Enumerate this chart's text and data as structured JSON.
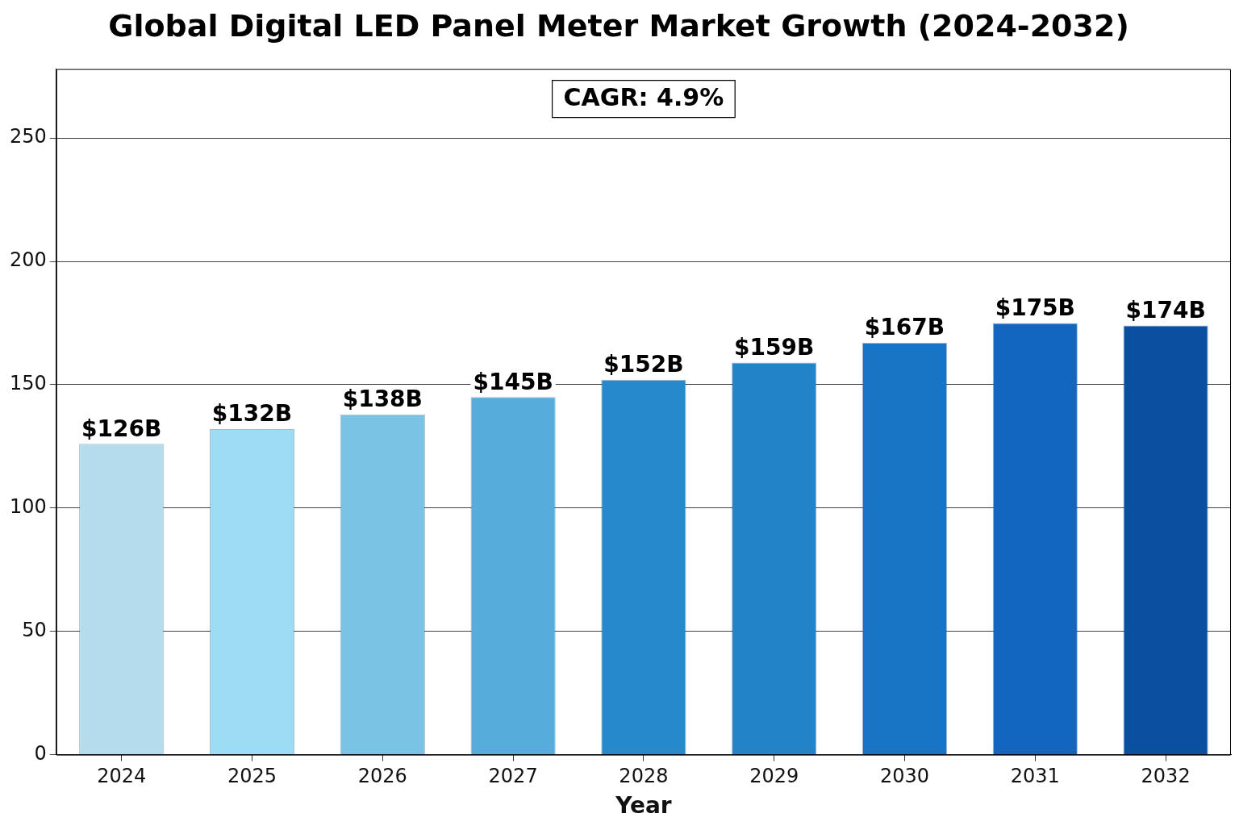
{
  "chart_data": {
    "type": "bar",
    "title": "Global Digital LED Panel Meter Market Growth (2024-2032)",
    "xlabel": "Year",
    "categories": [
      "2024",
      "2025",
      "2026",
      "2027",
      "2028",
      "2029",
      "2030",
      "2031",
      "2032"
    ],
    "values": [
      126,
      132,
      138,
      145,
      152,
      159,
      167,
      175,
      174
    ],
    "colors": [
      "#b5dcec",
      "#9edcf5",
      "#7ac3e4",
      "#56addb",
      "#2589cc",
      "#2283c9",
      "#1874c4",
      "#1266bf",
      "#0a4fa0"
    ],
    "value_labels": [
      "$126B",
      "$132B",
      "$138B",
      "$145B",
      "$152B",
      "$159B",
      "$167B",
      "$175B",
      "$174B"
    ],
    "ylim": [
      0,
      278
    ],
    "yticks": [
      0,
      50,
      100,
      150,
      200,
      250
    ],
    "grid": "y",
    "annotations": [
      "CAGR: 4.9%"
    ]
  }
}
